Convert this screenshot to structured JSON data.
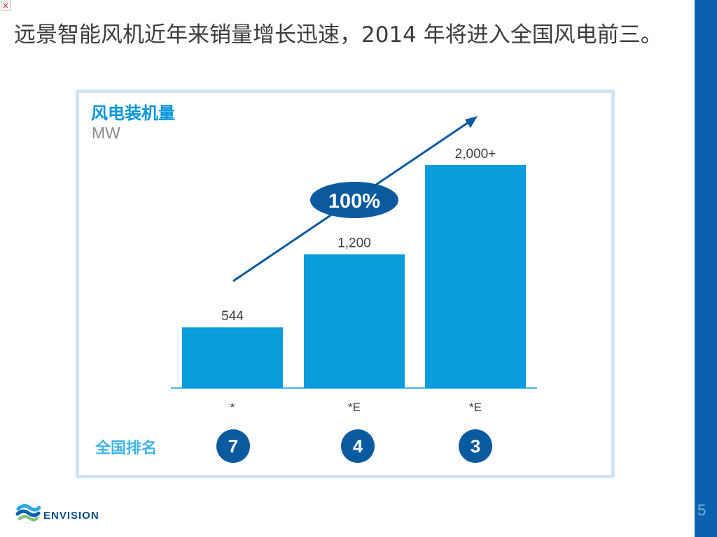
{
  "slide": {
    "title": "远景智能风机近年来销量增长迅速，2014 年将进入全国风电前三。",
    "page_number": "5",
    "close_glyph": "×"
  },
  "logo": {
    "text": "ENVISION",
    "icon": "envision-wave-logo"
  },
  "chart": {
    "title": "风电装机量",
    "unit": "MW",
    "growth_label": "100%",
    "rank_label": "全国排名"
  },
  "chart_data": {
    "type": "bar",
    "title": "风电装机量",
    "ylabel": "MW",
    "categories": [
      "*",
      "*E",
      "*E"
    ],
    "values": [
      544,
      1200,
      2000
    ],
    "data_labels": [
      "544",
      "1,200",
      "2,000+"
    ],
    "ranks": [
      "7",
      "4",
      "3"
    ],
    "annotation": "100%",
    "ylim": [
      0,
      2000
    ],
    "grid": false,
    "legend": "none"
  },
  "colors": {
    "bar": "#0a9cdc",
    "arrow": "#0a5aa0",
    "axis": "#0a9cdc",
    "band": "#0a62ae",
    "rank_circle": "#0a5aa0"
  }
}
